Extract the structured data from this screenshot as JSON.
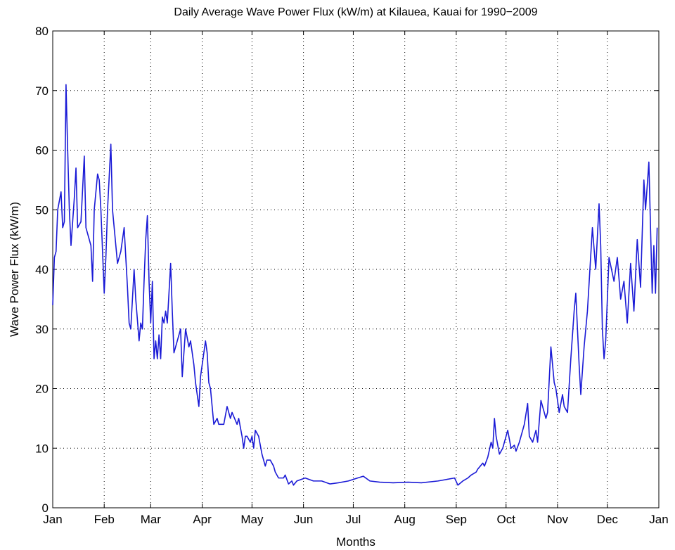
{
  "chart_data": {
    "type": "line",
    "title": "Daily Average Wave Power Flux (kW/m) at Kilauea, Kauai for 1990−2009",
    "xlabel": "Months",
    "ylabel": "Wave Power Flux (kW/m)",
    "xlim": [
      0,
      365
    ],
    "ylim": [
      0,
      80
    ],
    "xticks": [
      {
        "value": 0,
        "label": "Jan"
      },
      {
        "value": 31,
        "label": "Feb"
      },
      {
        "value": 59,
        "label": "Mar"
      },
      {
        "value": 90,
        "label": "Apr"
      },
      {
        "value": 120,
        "label": "May"
      },
      {
        "value": 151,
        "label": "Jun"
      },
      {
        "value": 181,
        "label": "Jul"
      },
      {
        "value": 212,
        "label": "Aug"
      },
      {
        "value": 243,
        "label": "Sep"
      },
      {
        "value": 273,
        "label": "Oct"
      },
      {
        "value": 304,
        "label": "Nov"
      },
      {
        "value": 334,
        "label": "Dec"
      },
      {
        "value": 365,
        "label": "Jan"
      }
    ],
    "yticks": [
      0,
      10,
      20,
      30,
      40,
      50,
      60,
      70,
      80
    ],
    "grid": true,
    "x": [
      0,
      1,
      2,
      3,
      5,
      6,
      7,
      8,
      9,
      10,
      11,
      13,
      14,
      15,
      17,
      19,
      20,
      22,
      23,
      24,
      25,
      27,
      28,
      29,
      31,
      32,
      33,
      35,
      36,
      38,
      39,
      41,
      43,
      44,
      45,
      46,
      47,
      49,
      50,
      52,
      53,
      54,
      55,
      56,
      57,
      58,
      59,
      60,
      61,
      62,
      63,
      64,
      65,
      66,
      67,
      68,
      69,
      70,
      71,
      72,
      73,
      75,
      77,
      78,
      80,
      82,
      83,
      85,
      86,
      88,
      89,
      90,
      92,
      93,
      94,
      95,
      97,
      99,
      100,
      103,
      105,
      107,
      108,
      111,
      112,
      114,
      115,
      116,
      117,
      119,
      120,
      121,
      122,
      124,
      126,
      128,
      129,
      131,
      133,
      134,
      136,
      139,
      140,
      142,
      144,
      145,
      147,
      152,
      157,
      162,
      167,
      172,
      178,
      187,
      191,
      197,
      205,
      214,
      222,
      232,
      242,
      244,
      247,
      250,
      252,
      255,
      256,
      259,
      260,
      262,
      264,
      265,
      266,
      267,
      269,
      271,
      272,
      274,
      276,
      278,
      279,
      281,
      284,
      286,
      287,
      289,
      291,
      292,
      294,
      297,
      298,
      300,
      302,
      303,
      305,
      307,
      308,
      310,
      312,
      314,
      315,
      317,
      318,
      320,
      322,
      325,
      327,
      329,
      330,
      331,
      332,
      333,
      335,
      338,
      340,
      342,
      344,
      346,
      348,
      350,
      352,
      354,
      356,
      357,
      359,
      361,
      362,
      363,
      364
    ],
    "series": [
      {
        "name": "Wave Power Flux",
        "color": "#1a1ad6",
        "values": [
          34,
          42,
          43,
          50,
          53,
          47,
          48,
          71,
          60,
          50,
          44,
          52,
          57,
          47,
          48,
          59,
          47,
          45,
          44,
          38,
          50,
          56,
          55,
          50,
          36,
          42,
          50,
          61,
          50,
          44,
          41,
          43,
          47,
          42,
          37,
          31,
          30,
          40,
          35,
          28,
          31,
          30,
          38,
          45,
          49,
          38,
          31,
          38,
          25,
          28,
          25,
          29,
          25,
          32,
          31,
          33,
          31,
          36,
          41,
          33,
          26,
          28,
          30,
          22,
          30,
          27,
          28,
          24,
          21,
          17,
          22,
          24,
          28,
          26,
          21,
          20,
          14,
          15,
          14,
          14,
          17,
          15,
          16,
          14,
          15,
          12,
          10,
          12,
          12,
          11,
          12,
          10,
          13,
          12,
          9,
          7,
          8,
          8,
          7,
          6,
          5,
          5,
          5.5,
          4,
          4.5,
          3.8,
          4.5,
          5,
          4.5,
          4.5,
          4,
          4.2,
          4.5,
          5.3,
          4.5,
          4.3,
          4.2,
          4.3,
          4.2,
          4.5,
          5,
          3.8,
          4.5,
          5,
          5.5,
          6,
          6.5,
          7.5,
          7,
          8.5,
          11,
          10,
          15,
          12,
          9,
          10,
          11,
          13,
          10,
          10.5,
          9.5,
          11,
          14,
          17.5,
          12,
          11,
          13,
          11,
          18,
          15,
          16,
          27,
          21,
          20,
          16,
          19,
          17,
          16,
          25,
          33,
          36,
          24,
          19,
          27,
          33,
          47,
          40,
          51,
          44,
          30,
          25,
          28,
          42,
          38,
          42,
          35,
          38,
          31,
          41,
          33,
          45,
          37,
          55,
          50,
          58,
          36,
          44,
          36,
          47
        ]
      }
    ]
  }
}
